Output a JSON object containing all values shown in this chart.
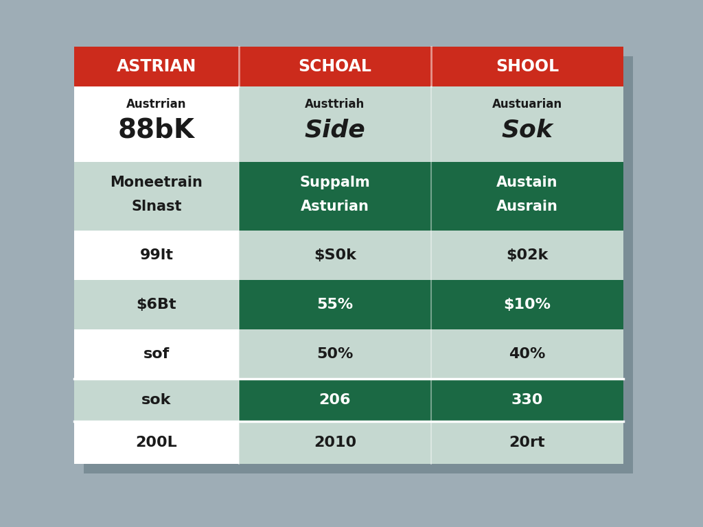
{
  "header_col1": "ASTRIAN",
  "header_col2": "SCHOAL",
  "header_col3": "SHOOL",
  "header_bg": "#CC2B1C",
  "header_text_color": "#FFFFFF",
  "row1_col1": "88bK\nAustrrian",
  "row1_col2": "Side\nAusttriah",
  "row1_col3": "Sok\nAustuarian",
  "row2_col1": "Slnast\nMoneetrain",
  "row2_col2": "Asturian\nSuppalm",
  "row2_col3": "Ausrain\nAustain",
  "row3_col1": "99lt",
  "row3_col2": "$S0k",
  "row3_col3": "$02k",
  "row4_col1": "$6Bt",
  "row4_col2": "55%",
  "row4_col3": "$10%",
  "row5_col1": "sof",
  "row5_col2": "50%",
  "row5_col3": "40%",
  "row6_col1": "sok",
  "row6_col2": "206",
  "row6_col3": "330",
  "row7_col1": "200L",
  "row7_col2": "2010",
  "row7_col3": "20rt",
  "header_bg_color": "#CC2B1C",
  "header_text_color2": "#FFFFFF",
  "col1_white_bg": "#FFFFFF",
  "col1_light_bg": "#C5D8D0",
  "col23_light_bg": "#C5D8D0",
  "col23_dark_bg": "#1B6944",
  "dark_text": "#1A1A1A",
  "light_text": "#FFFFFF",
  "bg_color": "#9EADB6",
  "shadow_color": "#7A8D96"
}
